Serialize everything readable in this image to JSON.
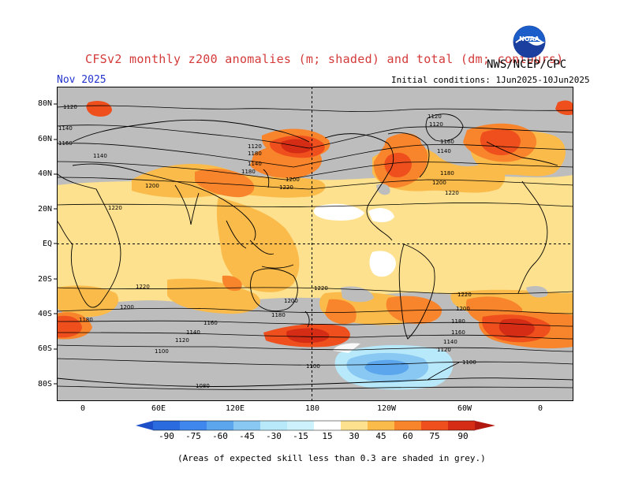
{
  "header": {
    "title": "CFSv2 monthly z200 anomalies (m; shaded) and total (dm; contours)",
    "org": "NWS/NCEP/CPC",
    "forecast_month": "Nov 2025",
    "initial_conditions": "Initial conditions: 1Jun2025-10Jun2025",
    "logo_text": "NOAA"
  },
  "map": {
    "lat_labels": [
      "80N",
      "60N",
      "40N",
      "20N",
      "EQ",
      "20S",
      "40S",
      "60S",
      "80S"
    ],
    "lon_labels": [
      "0",
      "60E",
      "120E",
      "180",
      "120W",
      "60W",
      "0"
    ],
    "contour_labels": [
      "1120",
      "1140",
      "1160",
      "1180",
      "1200",
      "1220",
      "1220",
      "1200",
      "1180",
      "1160",
      "1140",
      "1120",
      "1100",
      "1080",
      "1120",
      "1140",
      "1180",
      "1200",
      "1220",
      "1120",
      "1140",
      "1160",
      "1180",
      "1200",
      "1220",
      "1220",
      "1200",
      "1180",
      "1160",
      "1140",
      "1120",
      "1100",
      "1100",
      "1200",
      "1220",
      "1120",
      "1140",
      "1160",
      "1180",
      "1180",
      "1160",
      "1140"
    ],
    "colors": {
      "grey_low_skill": "#bdbdbd",
      "neutral": "#ffffff",
      "pos_15": "#fee18e",
      "pos_30": "#fbbb4a",
      "pos_45": "#f8842c",
      "pos_60": "#ef4f1c",
      "pos_75": "#d52c16",
      "pos_90": "#b01810",
      "neg_15": "#b8e9fb",
      "neg_30": "#88c8f3",
      "neg_45": "#5ba6ec"
    }
  },
  "colorbar": {
    "labels": [
      "-90",
      "-75",
      "-60",
      "-45",
      "-30",
      "-15",
      "15",
      "30",
      "45",
      "60",
      "75",
      "90"
    ],
    "colors": [
      "#1d4fc9",
      "#2b6be0",
      "#3f87ec",
      "#5ba6ec",
      "#88c8f3",
      "#b8e9fb",
      "#ffffff",
      "#fee18e",
      "#fbbb4a",
      "#f8842c",
      "#ef4f1c",
      "#d52c16",
      "#b01810"
    ]
  },
  "footnote": "(Areas of expected skill less than 0.3 are shaded in grey.)"
}
